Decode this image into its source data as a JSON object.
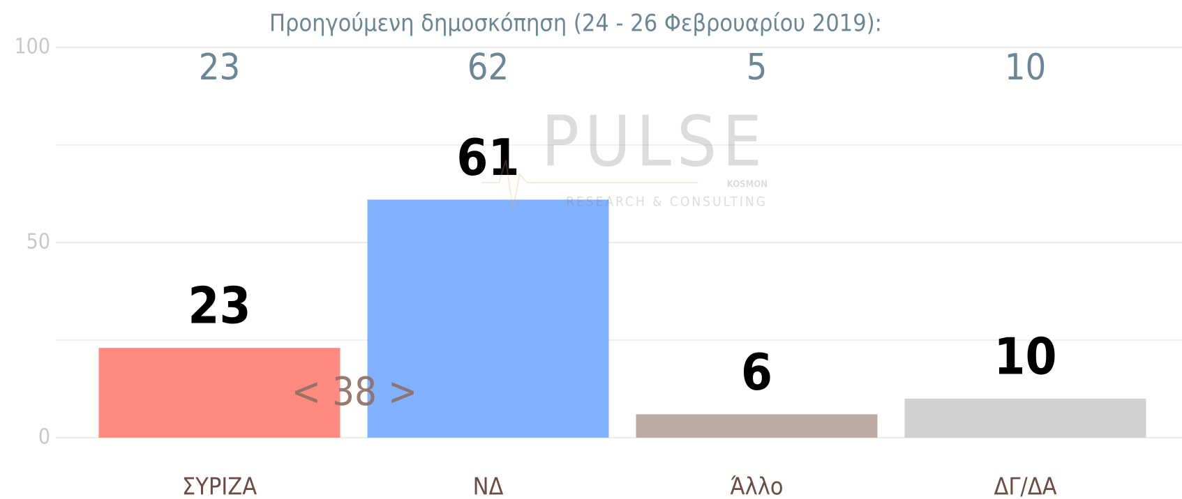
{
  "chart_data": {
    "type": "bar",
    "subtitle": "Προηγούμενη δημοσκόπηση (24 - 26 Φεβρουαρίου 2019):",
    "categories": [
      "ΣΥΡΙΖΑ",
      "ΝΔ",
      "Άλλο",
      "ΔΓ/ΔΑ"
    ],
    "values": [
      23,
      61,
      6,
      10
    ],
    "previous_values": [
      23,
      62,
      5,
      10
    ],
    "colors": [
      "#ff8a80",
      "#82b1ff",
      "#bcaaa4",
      "#d0d0d0"
    ],
    "ylim": [
      0,
      100
    ],
    "yticks": [
      0,
      50,
      100
    ],
    "minor_yticks": [
      25,
      75
    ],
    "grid": true,
    "annotation": "< 38 >",
    "watermark": {
      "brand": "PULSE",
      "tagline": "RESEARCH & CONSULTING",
      "partner": "KOSMON"
    }
  }
}
